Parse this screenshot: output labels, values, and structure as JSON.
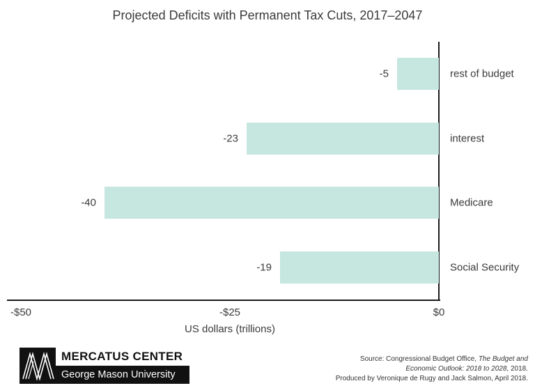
{
  "chart_data": {
    "type": "bar",
    "orientation": "horizontal",
    "title": "Projected Deficits with Permanent Tax Cuts, 2017–2047",
    "categories": [
      "rest of budget",
      "interest",
      "Medicare",
      "Social Security"
    ],
    "values": [
      -5,
      -23,
      -40,
      -19
    ],
    "xlabel": "US dollars (trillions)",
    "xlim": [
      -50,
      0
    ],
    "ticks": [
      {
        "value": -50,
        "label": "-$50"
      },
      {
        "value": -25,
        "label": "-$25"
      },
      {
        "value": 0,
        "label": "$0"
      }
    ],
    "bar_color": "#c6e6e0",
    "axis_color": "#1a1a1a",
    "grid": false,
    "legend": "none"
  },
  "footer": {
    "logo": {
      "org": "MERCATUS CENTER",
      "university": "George Mason University"
    },
    "source": {
      "line1_regular": "Source: Congressional Budget Office, ",
      "line1_italic": "The Budget and",
      "line2_italic": "Economic Outlook: 2018 to 2028",
      "line2_regular": ", 2018.",
      "line3": "Produced by Veronique de Rugy and Jack Salmon, April 2018."
    }
  }
}
